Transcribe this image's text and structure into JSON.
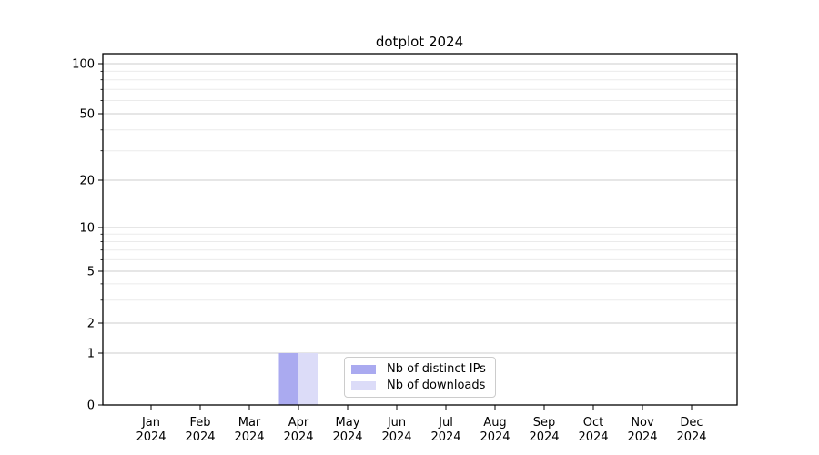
{
  "figure": {
    "title": "dotplot 2024"
  },
  "chart_data": {
    "type": "bar",
    "title": "dotplot 2024",
    "categories": [
      "Jan",
      "Feb",
      "Mar",
      "Apr",
      "May",
      "Jun",
      "Jul",
      "Aug",
      "Sep",
      "Oct",
      "Nov",
      "Dec"
    ],
    "category_year": "2024",
    "series": [
      {
        "name": "Nb of distinct IPs",
        "color": "#aaaaf0",
        "values": [
          0,
          0,
          0,
          1,
          0,
          0,
          0,
          0,
          0,
          0,
          0,
          0
        ]
      },
      {
        "name": "Nb of downloads",
        "color": "#dcdcf8",
        "values": [
          0,
          0,
          0,
          1,
          0,
          0,
          0,
          0,
          0,
          0,
          0,
          0
        ]
      }
    ],
    "xlabel": "",
    "ylabel": "",
    "yscale": "symlog",
    "yticks": [
      0,
      1,
      2,
      5,
      10,
      20,
      50,
      100
    ],
    "ylim": [
      0,
      115
    ],
    "grid": true,
    "legend_position": "inside-bottom-center"
  },
  "colors": {
    "axis": "#000000",
    "grid_major": "#cccccc",
    "grid_minor": "#ebebeb",
    "background": "#ffffff",
    "series_1": "#aaaaf0",
    "series_2": "#dcdcf8"
  }
}
